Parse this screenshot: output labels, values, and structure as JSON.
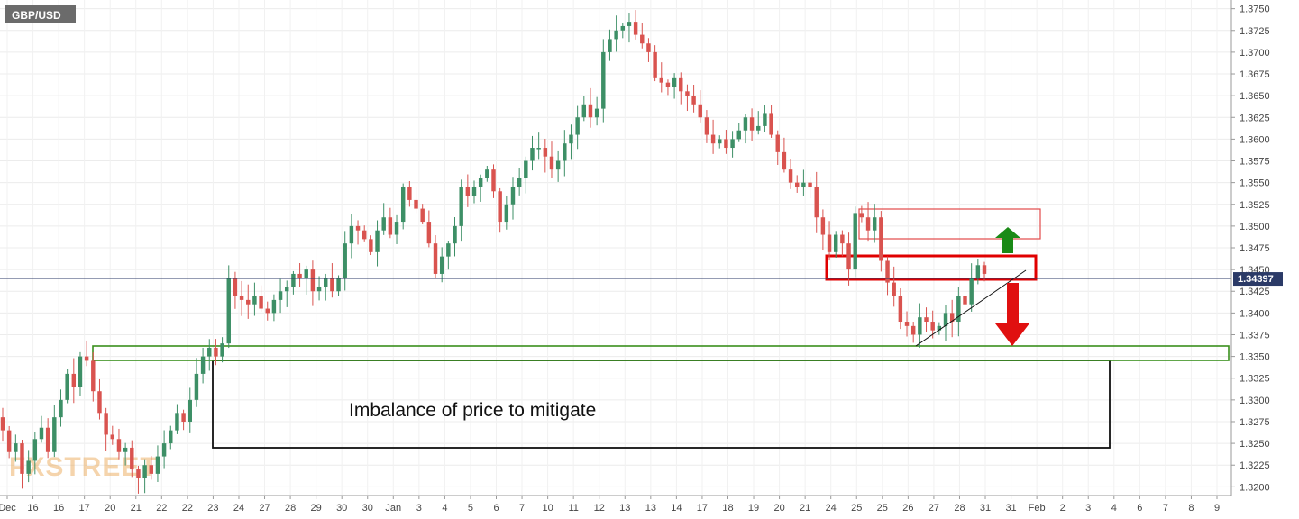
{
  "chart_data": {
    "type": "candlestick",
    "symbol": "GBP/USD",
    "watermark": "FXSTREET",
    "ylim": [
      1.319,
      1.376
    ],
    "y_ticks": [
      "1.3200",
      "1.3225",
      "1.3250",
      "1.3275",
      "1.3300",
      "1.3325",
      "1.3350",
      "1.3375",
      "1.3400",
      "1.3425",
      "1.3450",
      "1.3475",
      "1.3500",
      "1.3525",
      "1.3550",
      "1.3575",
      "1.3600",
      "1.3625",
      "1.3650",
      "1.3675",
      "1.3700",
      "1.3725",
      "1.3750"
    ],
    "x_labels": [
      "Dec",
      "16",
      "16",
      "17",
      "20",
      "21",
      "22",
      "22",
      "23",
      "24",
      "27",
      "28",
      "29",
      "30",
      "30",
      "Jan",
      "3",
      "4",
      "5",
      "6",
      "7",
      "10",
      "11",
      "12",
      "13",
      "13",
      "14",
      "17",
      "18",
      "19",
      "20",
      "21",
      "24",
      "25",
      "25",
      "26",
      "27",
      "28",
      "31",
      "31",
      "Feb",
      "2",
      "3",
      "4",
      "6",
      "7",
      "8",
      "9"
    ],
    "last_price": "1.34397",
    "last_price_value": 1.34397,
    "bullish_color": "#3d8f66",
    "bearish_color": "#d9534f",
    "candles_close": [
      1.3265,
      1.324,
      1.325,
      1.3215,
      1.323,
      1.3255,
      1.3268,
      1.324,
      1.328,
      1.33,
      1.333,
      1.3315,
      1.335,
      1.3345,
      1.331,
      1.3285,
      1.326,
      1.3255,
      1.324,
      1.3245,
      1.322,
      1.321,
      1.3225,
      1.3215,
      1.3235,
      1.325,
      1.3265,
      1.3285,
      1.3275,
      1.33,
      1.333,
      1.335,
      1.336,
      1.335,
      1.3365,
      1.344,
      1.342,
      1.3415,
      1.341,
      1.342,
      1.3405,
      1.34,
      1.3415,
      1.3425,
      1.343,
      1.3445,
      1.344,
      1.345,
      1.3425,
      1.343,
      1.344,
      1.3425,
      1.344,
      1.348,
      1.35,
      1.3495,
      1.3485,
      1.347,
      1.3495,
      1.351,
      1.349,
      1.3505,
      1.3545,
      1.353,
      1.352,
      1.3505,
      1.348,
      1.3445,
      1.3465,
      1.348,
      1.35,
      1.3545,
      1.3535,
      1.3545,
      1.3555,
      1.3565,
      1.354,
      1.3505,
      1.3525,
      1.3545,
      1.3555,
      1.3575,
      1.359,
      1.359,
      1.358,
      1.3565,
      1.3575,
      1.3595,
      1.3605,
      1.3625,
      1.364,
      1.3625,
      1.3635,
      1.37,
      1.3715,
      1.3725,
      1.373,
      1.3735,
      1.372,
      1.371,
      1.37,
      1.367,
      1.3665,
      1.366,
      1.367,
      1.3655,
      1.365,
      1.364,
      1.3625,
      1.3605,
      1.3595,
      1.36,
      1.359,
      1.36,
      1.361,
      1.3625,
      1.361,
      1.3615,
      1.363,
      1.3605,
      1.3585,
      1.3565,
      1.355,
      1.3545,
      1.355,
      1.3545,
      1.351,
      1.349,
      1.347,
      1.349,
      1.348,
      1.345,
      1.3515,
      1.351,
      1.3495,
      1.351,
      1.346,
      1.3435,
      1.342,
      1.339,
      1.3385,
      1.3375,
      1.3395,
      1.339,
      1.338,
      1.3385,
      1.34,
      1.339,
      1.342,
      1.341,
      1.344,
      1.3455,
      1.3445
    ]
  },
  "annotations": {
    "imbalance_label": "Imbalance of price to mitigate"
  }
}
